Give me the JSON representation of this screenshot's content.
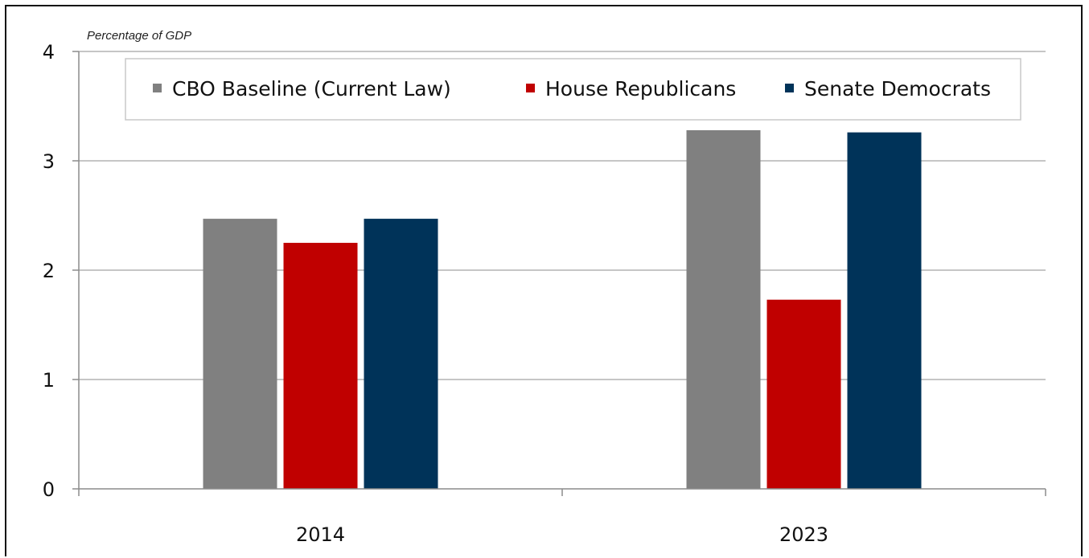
{
  "chart_data": {
    "type": "bar",
    "title": "",
    "unit_label": "Percentage of GDP",
    "xlabel": "",
    "ylabel": "",
    "categories": [
      "2014",
      "2023"
    ],
    "ylim": [
      0,
      4
    ],
    "yticks": [
      "0",
      "1",
      "2",
      "3",
      "4"
    ],
    "grid": true,
    "legend_position": "top",
    "series": [
      {
        "name": "CBO Baseline (Current Law)",
        "color": "#808080",
        "values": [
          2.47,
          3.28
        ]
      },
      {
        "name": "House Republicans",
        "color": "#c00000",
        "values": [
          2.25,
          1.73
        ]
      },
      {
        "name": "Senate Democrats",
        "color": "#003359",
        "values": [
          2.47,
          3.26
        ]
      }
    ]
  }
}
